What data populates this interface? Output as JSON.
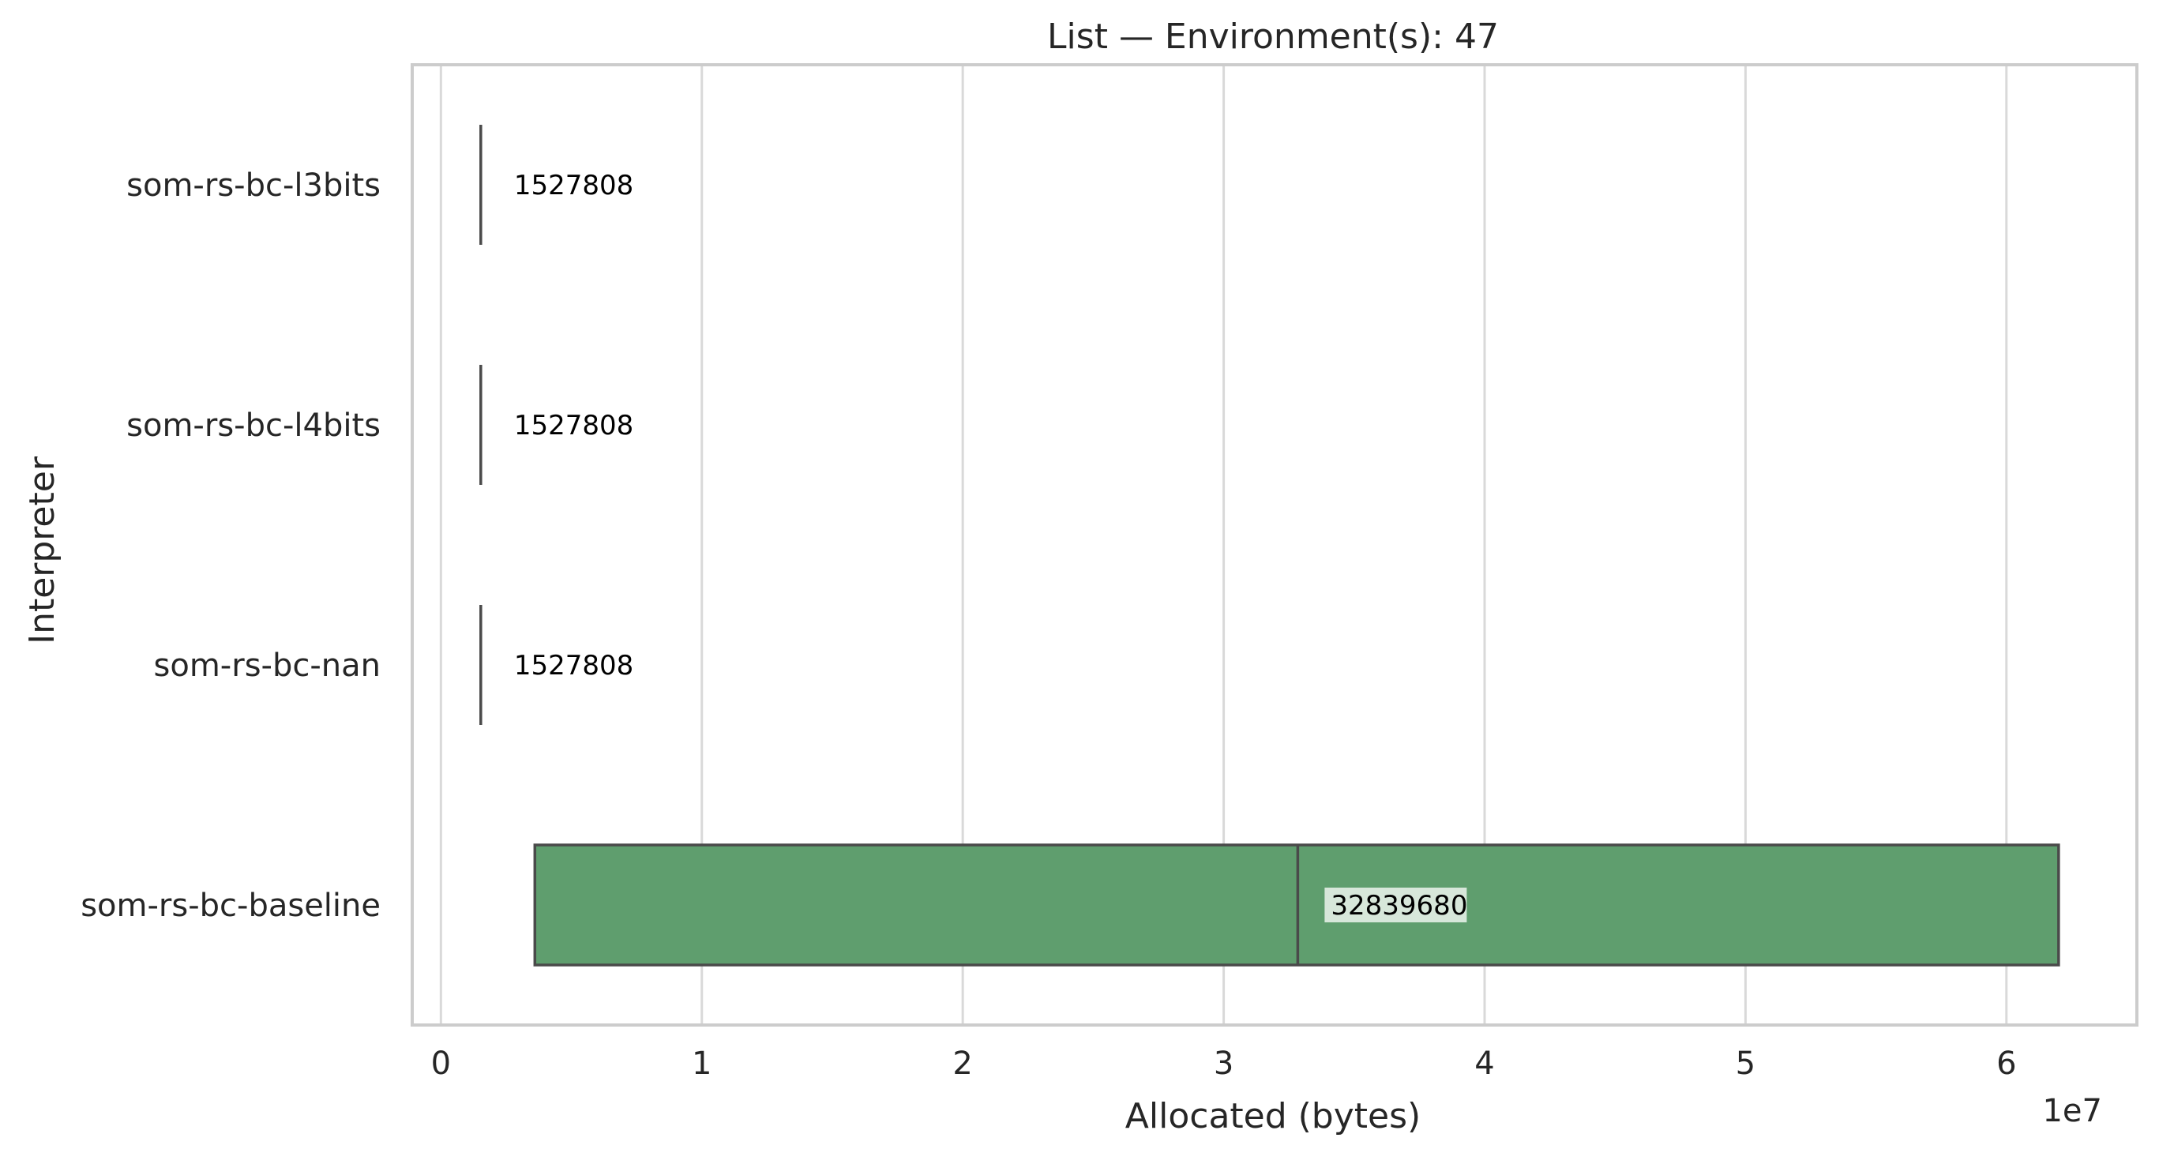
{
  "chart_data": {
    "type": "box",
    "orientation": "horizontal",
    "title": "List — Environment(s): 47",
    "xlabel": "Allocated (bytes)",
    "ylabel": "Interpreter",
    "x_scale_label": "1e7",
    "xlim": [
      -1100000,
      65000000
    ],
    "x_ticks": [
      0,
      10000000,
      20000000,
      30000000,
      40000000,
      50000000,
      60000000
    ],
    "x_tick_labels": [
      "0",
      "1",
      "2",
      "3",
      "4",
      "5",
      "6"
    ],
    "grid": "x",
    "categories": [
      "som-rs-bc-l3bits",
      "som-rs-bc-l4bits",
      "som-rs-bc-nan",
      "som-rs-bc-baseline"
    ],
    "boxes": [
      {
        "category": "som-rs-bc-l3bits",
        "q1": 1527808,
        "median": 1527808,
        "q3": 1527808,
        "label": "1527808",
        "color": "#5f9e6e",
        "label_background": false
      },
      {
        "category": "som-rs-bc-l4bits",
        "q1": 1527808,
        "median": 1527808,
        "q3": 1527808,
        "label": "1527808",
        "color": "#5f9e6e",
        "label_background": false
      },
      {
        "category": "som-rs-bc-nan",
        "q1": 1527808,
        "median": 1527808,
        "q3": 1527808,
        "label": "1527808",
        "color": "#5f9e6e",
        "label_background": false
      },
      {
        "category": "som-rs-bc-baseline",
        "q1": 3600000,
        "median": 32839680,
        "q3": 62000000,
        "label": "32839680",
        "color": "#5f9e6e",
        "label_background": true
      }
    ],
    "colors": {
      "box_fill": "#5f9e6e",
      "box_edge": "#4a4a4a",
      "grid": "#d9d9d9",
      "spine": "#cccccc",
      "text": "#262626"
    }
  }
}
